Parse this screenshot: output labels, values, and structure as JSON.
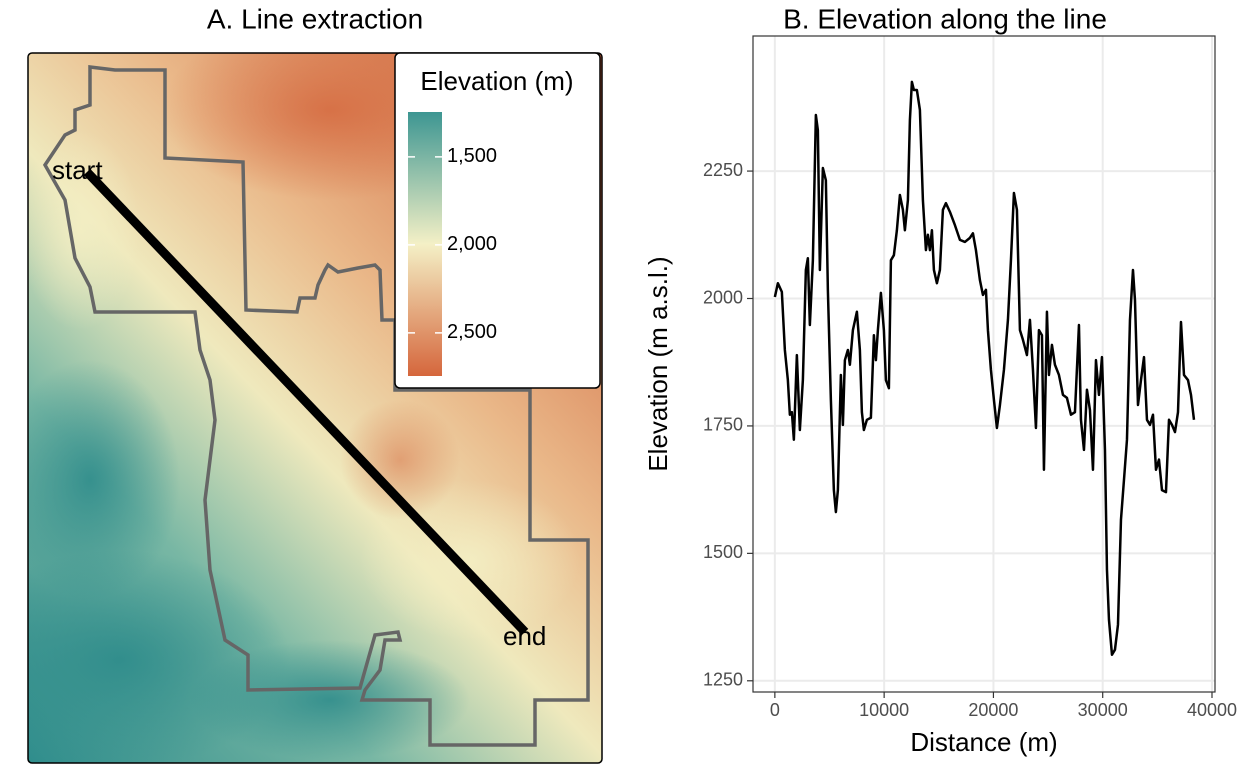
{
  "chart_data": [
    {
      "type": "raster",
      "title": "A. Line extraction",
      "legend_title": "Elevation (m)",
      "legend_lim": [
        1245,
        2745
      ],
      "legend_ticks": [
        {
          "value": 1500,
          "label": "1,500"
        },
        {
          "value": 2000,
          "label": "2,000"
        },
        {
          "value": 2500,
          "label": "2,500"
        }
      ],
      "colors": [
        "#3d9692",
        "#f4f0c6",
        "#d5663c"
      ],
      "annotations": [
        "start",
        "end"
      ]
    },
    {
      "type": "line",
      "title": "B. Elevation along the line",
      "xlabel": "Distance (m)",
      "ylabel": "Elevation (m a.s.l.)",
      "color": "#000000",
      "grid": true,
      "xlim": [
        -2000,
        40275
      ],
      "ylim": [
        1228,
        2515
      ],
      "xticks": [
        0,
        10000,
        20000,
        30000,
        40000
      ],
      "yticks": [
        1250,
        1500,
        1750,
        2000,
        2250
      ],
      "x": [
        0,
        275,
        640,
        915,
        1190,
        1373,
        1556,
        1739,
        2014,
        2288,
        2563,
        2838,
        3020,
        3203,
        3478,
        3753,
        3936,
        4119,
        4394,
        4668,
        4851,
        5126,
        5400,
        5584,
        5767,
        6041,
        6224,
        6407,
        6682,
        6865,
        7140,
        7506,
        7780,
        7963,
        8146,
        8421,
        8787,
        9062,
        9245,
        9428,
        9703,
        9977,
        10160,
        10435,
        10618,
        10892,
        11167,
        11442,
        11716,
        11899,
        12174,
        12357,
        12540,
        12723,
        12998,
        13272,
        13547,
        13822,
        14005,
        14188,
        14371,
        14554,
        14828,
        15103,
        15378,
        15652,
        16018,
        16476,
        16934,
        17391,
        17849,
        18124,
        18398,
        18764,
        19039,
        19314,
        19497,
        19771,
        20046,
        20320,
        20595,
        20961,
        21327,
        21602,
        21876,
        22151,
        22426,
        22700,
        23066,
        23341,
        23616,
        23890,
        24165,
        24439,
        24622,
        24897,
        25080,
        25355,
        25629,
        25995,
        26362,
        26728,
        27094,
        27460,
        27826,
        28009,
        28284,
        28558,
        28833,
        29108,
        29382,
        29657,
        29931,
        30206,
        30389,
        30572,
        30847,
        31121,
        31396,
        31671,
        31945,
        32220,
        32494,
        32769,
        32952,
        33227,
        33501,
        33776,
        34050,
        34325,
        34600,
        34874,
        35149,
        35423,
        35789,
        36064,
        36339,
        36613,
        36888,
        37162,
        37437,
        37803,
        38078,
        38352
      ],
      "values": [
        2003,
        2030,
        2013,
        1899,
        1840,
        1772,
        1777,
        1723,
        1889,
        1742,
        1840,
        2056,
        2079,
        1948,
        2075,
        2360,
        2330,
        2056,
        2256,
        2232,
        2017,
        1801,
        1624,
        1581,
        1624,
        1850,
        1752,
        1879,
        1899,
        1870,
        1938,
        1974,
        1899,
        1777,
        1742,
        1762,
        1766,
        1928,
        1879,
        1938,
        2011,
        1938,
        1840,
        1824,
        2075,
        2085,
        2134,
        2203,
        2174,
        2134,
        2193,
        2350,
        2425,
        2409,
        2409,
        2370,
        2193,
        2095,
        2125,
        2095,
        2134,
        2056,
        2030,
        2056,
        2174,
        2187,
        2170,
        2144,
        2115,
        2111,
        2119,
        2128,
        2095,
        2036,
        2007,
        2017,
        1938,
        1860,
        1801,
        1746,
        1791,
        1860,
        1958,
        2075,
        2207,
        2174,
        1938,
        1919,
        1889,
        1958,
        1860,
        1746,
        1938,
        1928,
        1664,
        1974,
        1850,
        1909,
        1870,
        1850,
        1811,
        1805,
        1772,
        1777,
        1948,
        1762,
        1703,
        1821,
        1781,
        1664,
        1879,
        1811,
        1885,
        1703,
        1468,
        1370,
        1301,
        1311,
        1360,
        1566,
        1644,
        1723,
        1958,
        2056,
        1997,
        1791,
        1840,
        1885,
        1762,
        1752,
        1772,
        1664,
        1684,
        1624,
        1620,
        1762,
        1752,
        1738,
        1777,
        1954,
        1850,
        1840,
        1811,
        1762
      ]
    }
  ]
}
